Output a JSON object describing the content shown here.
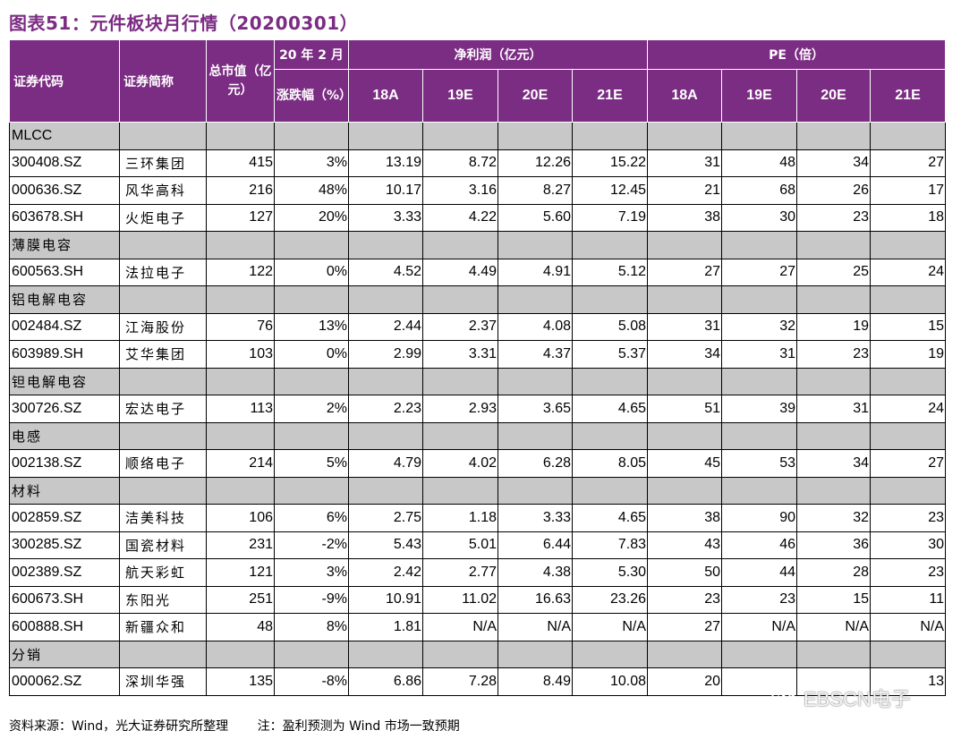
{
  "figure": {
    "title": "图表51：元件板块月行情（20200301）"
  },
  "headers": {
    "code": "证券代码",
    "name": "证券简称",
    "mktcap": "总市值（亿元）",
    "change_top": "20 年 2 月",
    "change_bottom": "涨跌幅（%）",
    "profit_group": "净利润（亿元）",
    "pe_group": "PE（倍）",
    "periods": [
      "18A",
      "19E",
      "20E",
      "21E"
    ]
  },
  "categories": [
    {
      "name": "MLCC",
      "rows": [
        {
          "code": "300408.SZ",
          "name": "三环集团",
          "mktcap": "415",
          "change": "3%",
          "profit": [
            "13.19",
            "8.72",
            "12.26",
            "15.22"
          ],
          "pe": [
            "31",
            "48",
            "34",
            "27"
          ]
        },
        {
          "code": "000636.SZ",
          "name": "风华高科",
          "mktcap": "216",
          "change": "48%",
          "profit": [
            "10.17",
            "3.16",
            "8.27",
            "12.45"
          ],
          "pe": [
            "21",
            "68",
            "26",
            "17"
          ]
        },
        {
          "code": "603678.SH",
          "name": "火炬电子",
          "mktcap": "127",
          "change": "20%",
          "profit": [
            "3.33",
            "4.22",
            "5.60",
            "7.19"
          ],
          "pe": [
            "38",
            "30",
            "23",
            "18"
          ]
        }
      ]
    },
    {
      "name": "薄膜电容",
      "rows": [
        {
          "code": "600563.SH",
          "name": "法拉电子",
          "mktcap": "122",
          "change": "0%",
          "profit": [
            "4.52",
            "4.49",
            "4.91",
            "5.12"
          ],
          "pe": [
            "27",
            "27",
            "25",
            "24"
          ]
        }
      ]
    },
    {
      "name": "铝电解电容",
      "rows": [
        {
          "code": "002484.SZ",
          "name": "江海股份",
          "mktcap": "76",
          "change": "13%",
          "profit": [
            "2.44",
            "2.37",
            "4.08",
            "5.08"
          ],
          "pe": [
            "31",
            "32",
            "19",
            "15"
          ]
        },
        {
          "code": "603989.SH",
          "name": "艾华集团",
          "mktcap": "103",
          "change": "0%",
          "profit": [
            "2.99",
            "3.31",
            "4.37",
            "5.37"
          ],
          "pe": [
            "34",
            "31",
            "23",
            "19"
          ]
        }
      ]
    },
    {
      "name": "钽电解电容",
      "rows": [
        {
          "code": "300726.SZ",
          "name": "宏达电子",
          "mktcap": "113",
          "change": "2%",
          "profit": [
            "2.23",
            "2.93",
            "3.65",
            "4.65"
          ],
          "pe": [
            "51",
            "39",
            "31",
            "24"
          ]
        }
      ]
    },
    {
      "name": "电感",
      "rows": [
        {
          "code": "002138.SZ",
          "name": "顺络电子",
          "mktcap": "214",
          "change": "5%",
          "profit": [
            "4.79",
            "4.02",
            "6.28",
            "8.05"
          ],
          "pe": [
            "45",
            "53",
            "34",
            "27"
          ]
        }
      ]
    },
    {
      "name": "材料",
      "rows": [
        {
          "code": "002859.SZ",
          "name": "洁美科技",
          "mktcap": "106",
          "change": "6%",
          "profit": [
            "2.75",
            "1.18",
            "3.33",
            "4.65"
          ],
          "pe": [
            "38",
            "90",
            "32",
            "23"
          ]
        },
        {
          "code": "300285.SZ",
          "name": "国瓷材料",
          "mktcap": "231",
          "change": "-2%",
          "profit": [
            "5.43",
            "5.01",
            "6.44",
            "7.83"
          ],
          "pe": [
            "43",
            "46",
            "36",
            "30"
          ]
        },
        {
          "code": "002389.SZ",
          "name": "航天彩虹",
          "mktcap": "121",
          "change": "3%",
          "profit": [
            "2.42",
            "2.77",
            "4.38",
            "5.30"
          ],
          "pe": [
            "50",
            "44",
            "28",
            "23"
          ]
        },
        {
          "code": "600673.SH",
          "name": "东阳光",
          "mktcap": "251",
          "change": "-9%",
          "profit": [
            "10.91",
            "11.02",
            "16.63",
            "23.26"
          ],
          "pe": [
            "23",
            "23",
            "15",
            "11"
          ]
        },
        {
          "code": "600888.SH",
          "name": "新疆众和",
          "mktcap": "48",
          "change": "8%",
          "profit": [
            "1.81",
            "N/A",
            "N/A",
            "N/A"
          ],
          "pe": [
            "27",
            "N/A",
            "N/A",
            "N/A"
          ]
        }
      ]
    },
    {
      "name": "分销",
      "rows": [
        {
          "code": "000062.SZ",
          "name": "深圳华强",
          "mktcap": "135",
          "change": "-8%",
          "profit": [
            "6.86",
            "7.28",
            "8.49",
            "10.08"
          ],
          "pe": [
            "20",
            "",
            "",
            "13"
          ]
        }
      ]
    }
  ],
  "footer": {
    "source": "资料来源：Wind，光大证券研究所整理",
    "note": "注：盈利预测为 Wind 市场一致预期"
  },
  "watermark": {
    "text": "EBSCN电子",
    "icon": "wechat-icon"
  }
}
